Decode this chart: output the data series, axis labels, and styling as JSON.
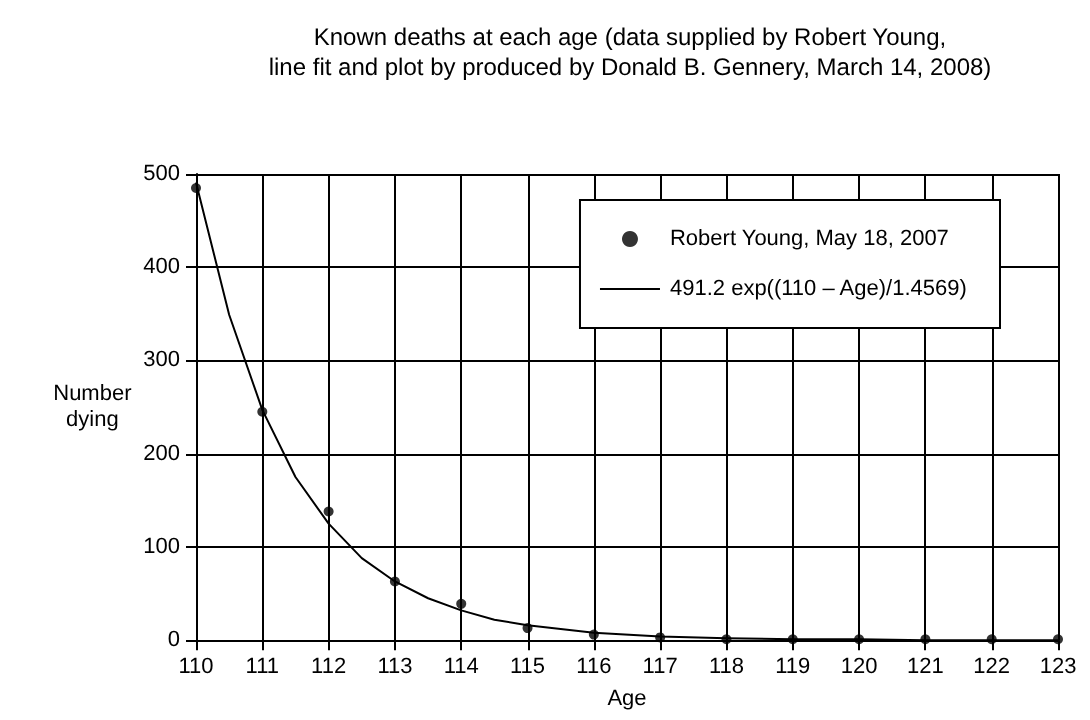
{
  "chart_data": {
    "type": "scatter",
    "title": "Known deaths at each age (data supplied by Robert Young,\nline fit and plot by produced by Donald B. Gennery, March 14, 2008)",
    "xlabel": "Age",
    "ylabel": "Number\ndying",
    "xlim": [
      110,
      123
    ],
    "xticks": [
      110,
      111,
      112,
      113,
      114,
      115,
      116,
      117,
      118,
      119,
      120,
      121,
      122,
      123
    ],
    "ylim": [
      0,
      500
    ],
    "yticks": [
      0,
      100,
      200,
      300,
      400,
      500
    ],
    "grid": true,
    "legend": "top right",
    "series": [
      {
        "name": "Robert Young, May 18, 2007",
        "marker": "circle",
        "color": "#000000",
        "x": [
          110,
          111,
          112,
          113,
          114,
          115,
          116,
          117,
          118,
          119,
          120,
          121,
          122,
          123
        ],
        "values": [
          485,
          245,
          138,
          63,
          39,
          13,
          6,
          3,
          1,
          1,
          1,
          1,
          1,
          1
        ]
      },
      {
        "name": "491.2 exp((110 – Age)/1.4569)",
        "type": "line",
        "marker": "none",
        "line_style": "solid",
        "color": "#000000",
        "x": [
          110,
          110.5,
          111,
          111.5,
          112,
          112.5,
          113,
          113.5,
          114,
          114.5,
          115,
          116,
          117,
          118,
          119,
          120,
          121,
          122,
          123
        ],
        "values": [
          491,
          349,
          247,
          175,
          125,
          88,
          63,
          45,
          32,
          22,
          16,
          8,
          4,
          2,
          1,
          1,
          0,
          0,
          0
        ]
      }
    ]
  }
}
